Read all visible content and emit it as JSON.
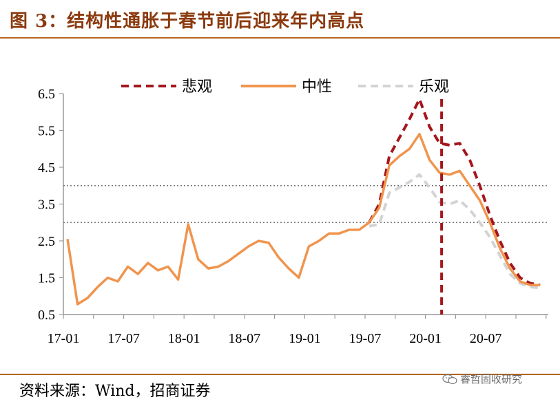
{
  "title": "图 3：结构性通胀于春节前后迎来年内高点",
  "source": "资料来源：Wind，招商证券",
  "watermark": "睿哲固收研究",
  "colors": {
    "pessimistic": "#a5161c",
    "neutral": "#f0944d",
    "optimistic": "#d3d3d3",
    "accent": "#8b3a0f"
  },
  "chart_data": {
    "type": "line",
    "x_start": "17-01",
    "x_ticks": [
      "17-01",
      "17-07",
      "18-01",
      "18-07",
      "19-01",
      "19-07",
      "20-01",
      "20-07"
    ],
    "x_tick_index": [
      0,
      6,
      12,
      18,
      24,
      30,
      36,
      42
    ],
    "y_ticks": [
      "0.5",
      "1.5",
      "2.5",
      "3.5",
      "4.5",
      "5.5",
      "6.5"
    ],
    "ylim": [
      0.5,
      6.5
    ],
    "reference_lines": [
      3,
      4
    ],
    "vertical_marker_index": 37.2,
    "legend": [
      "悲观",
      "中性",
      "乐观"
    ],
    "series": [
      {
        "name": "中性",
        "style": "solid",
        "x": [
          0,
          1,
          2,
          3,
          4,
          5,
          6,
          7,
          8,
          9,
          10,
          11,
          12,
          13,
          14,
          15,
          16,
          17,
          18,
          19,
          20,
          21,
          22,
          23,
          24,
          25,
          26,
          27,
          28,
          29,
          30,
          31,
          32,
          33,
          34,
          35,
          36,
          37,
          38,
          39,
          40,
          41,
          42,
          43,
          44,
          45,
          46,
          47
        ],
        "values": [
          2.55,
          0.78,
          0.95,
          1.25,
          1.5,
          1.4,
          1.8,
          1.6,
          1.9,
          1.7,
          1.8,
          1.45,
          2.95,
          2.0,
          1.75,
          1.8,
          1.95,
          2.15,
          2.35,
          2.5,
          2.45,
          2.05,
          1.75,
          1.5,
          2.35,
          2.5,
          2.7,
          2.7,
          2.8,
          2.8,
          3.0,
          3.4,
          4.55,
          4.8,
          5.0,
          5.4,
          4.7,
          4.35,
          4.3,
          4.4,
          4.0,
          3.6,
          3.0,
          2.3,
          1.75,
          1.4,
          1.3,
          1.3
        ]
      },
      {
        "name": "悲观",
        "style": "dashed",
        "x": [
          30,
          31,
          32,
          33,
          34,
          35,
          36,
          37,
          38,
          39,
          40,
          41,
          42,
          43,
          44,
          45,
          46,
          47
        ],
        "values": [
          3.0,
          3.5,
          4.8,
          5.3,
          5.8,
          6.35,
          5.6,
          5.15,
          5.1,
          5.15,
          4.7,
          4.0,
          3.2,
          2.5,
          1.9,
          1.5,
          1.35,
          1.3
        ]
      },
      {
        "name": "乐观",
        "style": "dashed",
        "x": [
          30,
          31,
          32,
          33,
          34,
          35,
          36,
          37,
          38,
          39,
          40,
          41,
          42,
          43,
          44,
          45,
          46,
          47
        ],
        "values": [
          2.9,
          2.95,
          3.8,
          3.95,
          4.1,
          4.3,
          3.95,
          3.55,
          3.5,
          3.6,
          3.35,
          3.0,
          2.6,
          2.1,
          1.6,
          1.35,
          1.25,
          1.22
        ]
      }
    ]
  }
}
